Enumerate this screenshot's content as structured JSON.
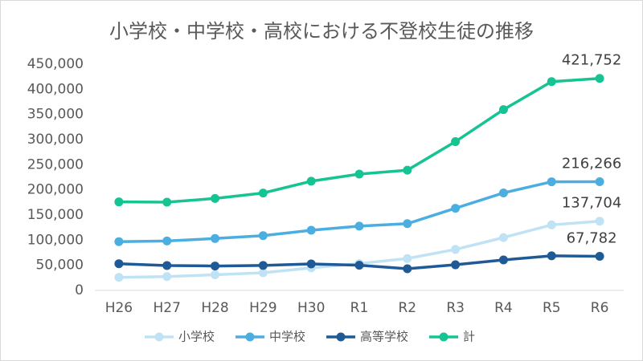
{
  "chart_data": {
    "type": "line",
    "title": "小学校・中学校・高校における不登校生徒の推移",
    "categories": [
      "H26",
      "H27",
      "H28",
      "H29",
      "H30",
      "R1",
      "R2",
      "R3",
      "R4",
      "R5",
      "R6"
    ],
    "series": [
      {
        "name": "小学校",
        "color": "#bfe3f5",
        "values": [
          25864,
          27583,
          31151,
          35032,
          44841,
          53350,
          63350,
          81498,
          105112,
          130370,
          137704
        ],
        "value_labels": [
          null,
          null,
          null,
          null,
          null,
          null,
          null,
          null,
          null,
          null,
          "137,704"
        ]
      },
      {
        "name": "中学校",
        "color": "#4aaee0",
        "values": [
          97033,
          98408,
          103235,
          108999,
          119687,
          127922,
          132777,
          163442,
          193936,
          216112,
          216266
        ],
        "value_labels": [
          null,
          null,
          null,
          null,
          null,
          null,
          null,
          null,
          null,
          null,
          "216,266"
        ]
      },
      {
        "name": "高等学校",
        "color": "#1f5a96",
        "values": [
          53156,
          49563,
          48565,
          49643,
          52723,
          50100,
          43051,
          50985,
          60575,
          68770,
          67782
        ],
        "value_labels": [
          null,
          null,
          null,
          null,
          null,
          null,
          null,
          null,
          null,
          null,
          "67,782"
        ]
      },
      {
        "name": "計",
        "color": "#16c493",
        "values": [
          176053,
          175554,
          182951,
          193674,
          217251,
          231372,
          239178,
          295925,
          359623,
          415252,
          421752
        ],
        "value_labels": [
          null,
          null,
          null,
          null,
          null,
          null,
          null,
          null,
          null,
          null,
          "421,752"
        ]
      }
    ],
    "ylim": [
      0,
      450000
    ],
    "yticks": [
      0,
      {
        "value": 50000,
        "label": "50,000"
      },
      {
        "value": 100000,
        "label": "100,000"
      },
      {
        "value": 150000,
        "label": "150,000"
      },
      {
        "value": 200000,
        "label": "200,000"
      },
      {
        "value": 250000,
        "label": "250,000"
      },
      {
        "value": 300000,
        "label": "300,000"
      },
      {
        "value": 350000,
        "label": "350,000"
      },
      {
        "value": 400000,
        "label": "400,000"
      },
      {
        "value": 450000,
        "label": "450,000"
      }
    ],
    "grid": false,
    "legend": "bottom"
  }
}
